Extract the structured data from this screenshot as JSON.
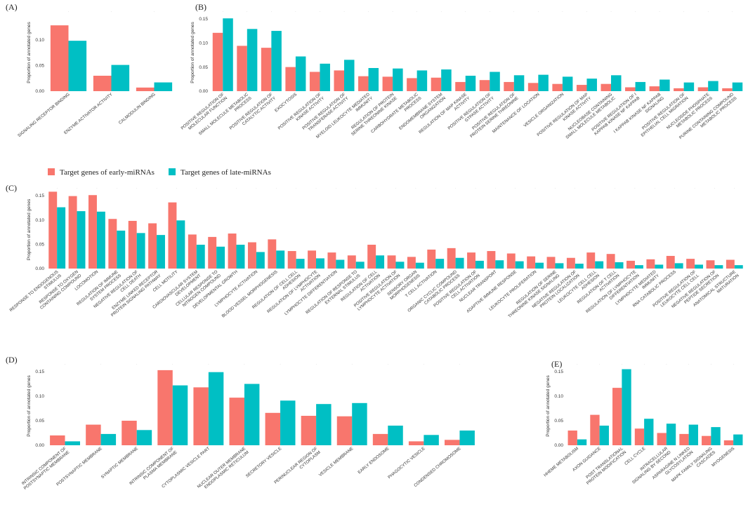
{
  "legend": {
    "early_label": "Target genes of early-miRNAs",
    "late_label": "Target genes of late-miRNAs",
    "early_color": "#F8766D",
    "late_color": "#00BFC4"
  },
  "chart_data": [
    {
      "panel": "(A)",
      "type": "bar",
      "ylabel": "Proportion of annotated genes",
      "ylim": [
        0,
        0.15
      ],
      "yticks": [
        "0.00",
        "0.05",
        "0.10"
      ],
      "categories": [
        "SIGNALING RECEPTOR BINDING",
        "ENZYME ACTIVATOR ACTIVITY",
        "CALMODULIN BINDING"
      ],
      "series": [
        {
          "name": "Target genes of early-miRNAs",
          "values": [
            0.128,
            0.03,
            0.007
          ]
        },
        {
          "name": "Target genes of late-miRNAs",
          "values": [
            0.098,
            0.051,
            0.017
          ]
        }
      ]
    },
    {
      "panel": "(B)",
      "type": "bar",
      "ylabel": "Proportion of annotated genes",
      "ylim": [
        0,
        0.16
      ],
      "yticks": [
        "0.00",
        "0.05",
        "0.10",
        "0.15"
      ],
      "categories": [
        "POSITIVE REGULATION OF MOLECULAR FUNCTION",
        "SMALL MOLECULE METABOLIC PROCESS",
        "POSITIVE REGULATION OF CATALYTIC ACTIVITY",
        "EXOCYTOSIS",
        "POSITIVE REGULATION OF KINASE ACTIVITY",
        "POSITIVE REGULATION OF TRANSFERASE ACTIVITY",
        "MYELOID LEUKOCYTE MEDIATED IMMUNITY",
        "REGULATION OF PROTEIN SERINE THREONINE KINASE ACTIVITY",
        "CARBOHYDRATE METABOLIC PROCESS",
        "ENDOMEMBRANE SYSTEM ORGANIZATION",
        "REGULATION OF MAP KINASE ACTIVITY",
        "POSITIVE REGULATION OF GTPASE ACTIVITY",
        "POSITIVE REGULATION OF PROTEIN SERINE THREONINE KINASE ACTIVITY",
        "MAINTENANCE OF LOCATION",
        "VESICLE ORGANIZATION",
        "POSITIVE REGULATION OF MAP KINASE ACTIVITY",
        "NUCLEOBASE CONTAINING SMALL MOLECULE METABOLIC PROCESS",
        "POSITIVE REGULATION OF I KAPPAB KINASE NF KAPPAB SIGNALING",
        "I KAPPAB KINASE NF KAPPAB SIGNALING",
        "POSITIVE REGULATION OF EPITHELIAL CELL MIGRATION",
        "NUCLEOSIDE PHOSPHATE METABOLIC PROCESS",
        "PURINE CONTAINING COMPOUND METABOLIC PROCESS"
      ],
      "series": [
        {
          "name": "Target genes of early-miRNAs",
          "values": [
            0.121,
            0.094,
            0.09,
            0.05,
            0.04,
            0.043,
            0.031,
            0.03,
            0.027,
            0.028,
            0.019,
            0.023,
            0.019,
            0.017,
            0.015,
            0.013,
            0.015,
            0.008,
            0.01,
            0.006,
            0.008,
            0.006
          ]
        },
        {
          "name": "Target genes of late-miRNAs",
          "values": [
            0.151,
            0.129,
            0.125,
            0.072,
            0.057,
            0.065,
            0.048,
            0.047,
            0.043,
            0.045,
            0.032,
            0.04,
            0.033,
            0.034,
            0.03,
            0.026,
            0.033,
            0.019,
            0.024,
            0.018,
            0.021,
            0.018
          ]
        }
      ]
    },
    {
      "panel": "(C)",
      "type": "bar",
      "ylabel": "Proportion of annotated genes",
      "ylim": [
        0,
        0.16
      ],
      "yticks": [
        "0.00",
        "0.05",
        "0.10",
        "0.15"
      ],
      "categories": [
        "RESPONSE TO ENDOGENOUS STIMULUS",
        "RESPONSE TO OXYGEN CONTAINING COMPOUND",
        "LOCOMOTION",
        "REGULATION OF IMMUNE SYSTEM PROCESS",
        "NEGATIVE REGULATION OF CELL DEATH",
        "ENZYME LINKED RECEPTOR PROTEIN SIGNALING PATHWAY",
        "CELL MOTILITY",
        "CARDIOVASCULAR SYSTEM DEVELOPMENT",
        "CELLULAR RESPONSE TO NITROGEN COMPOUND",
        "DEVELOPMENTAL GROWTH",
        "LYMPHOCYTE ACTIVATION",
        "BLOOD VESSEL MORPHOGENESIS",
        "REGULATION OF CELL CELL ADHESION",
        "REGULATION OF LYMPHOCYTE ACTIVATION",
        "LYMPHOCYTE DIFFERENTIATION",
        "REGULATION OF RESPONSE TO EXTERNAL STIMULUS",
        "REGULATION OF CELL ACTIVATION",
        "POSITIVE REGULATION OF LYMPHOCYTE ACTIVATION",
        "SENSORY ORGAN MORPHOGENESIS",
        "T CELL ACTIVATION",
        "ORGANIC CYCLIC COMPOUND CATABOLIC PROCESS",
        "POSITIVE REGULATION OF CELL ACTIVATION",
        "NUCLEAR TRANSPORT",
        "ADAPTIVE IMMUNE RESPONSE",
        "LEUKOCYTE PROLIFERATION",
        "REGULATION OF SERINE THREONINE KINASE SIGNALING",
        "NEGATIVE REGULATION OF PROTEIN LOCALIZATION",
        "LEUKOCYTE CELL CELL ADHESION",
        "REGULATION OF T CELL ACTIVATION",
        "REGULATION OF LYMPHOCYTE DIFFERENTIATION",
        "LYMPHOCYTE MEDIATED IMMUNITY",
        "RNA CATABOLIC PROCESS",
        "POSITIVE REGULATION OF LEUKOCYTE CELL CELL ADHESION",
        "NEGATIVE REGULATION OF PEPTIDE SECRETION",
        "ANATOMICAL STRUCTURE MATURATION"
      ],
      "series": [
        {
          "name": "Target genes of early-miRNAs",
          "values": [
            0.158,
            0.149,
            0.151,
            0.102,
            0.098,
            0.093,
            0.136,
            0.07,
            0.065,
            0.072,
            0.054,
            0.06,
            0.036,
            0.037,
            0.033,
            0.027,
            0.049,
            0.027,
            0.024,
            0.039,
            0.042,
            0.033,
            0.036,
            0.031,
            0.025,
            0.024,
            0.022,
            0.033,
            0.03,
            0.016,
            0.019,
            0.026,
            0.02,
            0.017,
            0.018
          ]
        },
        {
          "name": "Target genes of late-miRNAs",
          "values": [
            0.126,
            0.118,
            0.117,
            0.078,
            0.073,
            0.069,
            0.099,
            0.049,
            0.045,
            0.049,
            0.034,
            0.037,
            0.02,
            0.021,
            0.018,
            0.014,
            0.027,
            0.014,
            0.012,
            0.02,
            0.022,
            0.016,
            0.017,
            0.015,
            0.012,
            0.011,
            0.01,
            0.015,
            0.013,
            0.007,
            0.008,
            0.011,
            0.008,
            0.007,
            0.007
          ]
        }
      ]
    },
    {
      "panel": "(D)",
      "type": "bar",
      "ylabel": "Proportion of annotated genes",
      "ylim": [
        0,
        0.16
      ],
      "yticks": [
        "0.00",
        "0.05",
        "0.10",
        "0.15"
      ],
      "categories": [
        "INTRINSIC COMPONENT OF POSTSYNAPTIC MEMBRANE",
        "POSTSYNAPTIC MEMBRANE",
        "SYNAPTIC MEMBRANE",
        "INTRINSIC COMPONENT OF PLASMA MEMBRANE",
        "CYTOPLASMIC VESICLE PART",
        "NUCLEAR OUTER MEMBRANE ENDOPLASMIC RETICULUM MEMBRANE NETWORK",
        "SECRETORY VESICLE",
        "PERINUCLEAR REGION OF CYTOPLASM",
        "VESICLE MEMBRANE",
        "EARLY ENDOSOME",
        "PHAGOCYTIC VESICLE",
        "CONDENSED CHROMOSOME"
      ],
      "series": [
        {
          "name": "Target genes of early-miRNAs",
          "values": [
            0.02,
            0.042,
            0.05,
            0.153,
            0.118,
            0.097,
            0.066,
            0.06,
            0.059,
            0.023,
            0.008,
            0.011
          ]
        },
        {
          "name": "Target genes of late-miRNAs",
          "values": [
            0.008,
            0.023,
            0.031,
            0.122,
            0.149,
            0.125,
            0.091,
            0.084,
            0.086,
            0.04,
            0.021,
            0.03
          ]
        }
      ]
    },
    {
      "panel": "(E)",
      "type": "bar",
      "ylabel": "Proportion of annotated genes",
      "ylim": [
        0,
        0.16
      ],
      "yticks": [
        "0.00",
        "0.05",
        "0.10",
        "0.15"
      ],
      "categories": [
        "HHEME METABOLISM",
        "AXON GUIDANCE",
        "POST TRANSLATIONAL PROTEIN MODIFICATION",
        "CELL CYCLE",
        "INTRACELLULAR SIGNALING BY SECOND MESSENGERS",
        "ASPARAGINE N LINKED GLYCOSYLATION",
        "MAPK FAMILY SIGNALING CASCADES",
        "MYOGENESIS"
      ],
      "series": [
        {
          "name": "Target genes of early-miRNAs",
          "values": [
            0.03,
            0.062,
            0.117,
            0.034,
            0.025,
            0.023,
            0.019,
            0.01
          ]
        },
        {
          "name": "Target genes of late-miRNAs",
          "values": [
            0.012,
            0.04,
            0.155,
            0.054,
            0.044,
            0.042,
            0.037,
            0.022
          ]
        }
      ]
    }
  ]
}
